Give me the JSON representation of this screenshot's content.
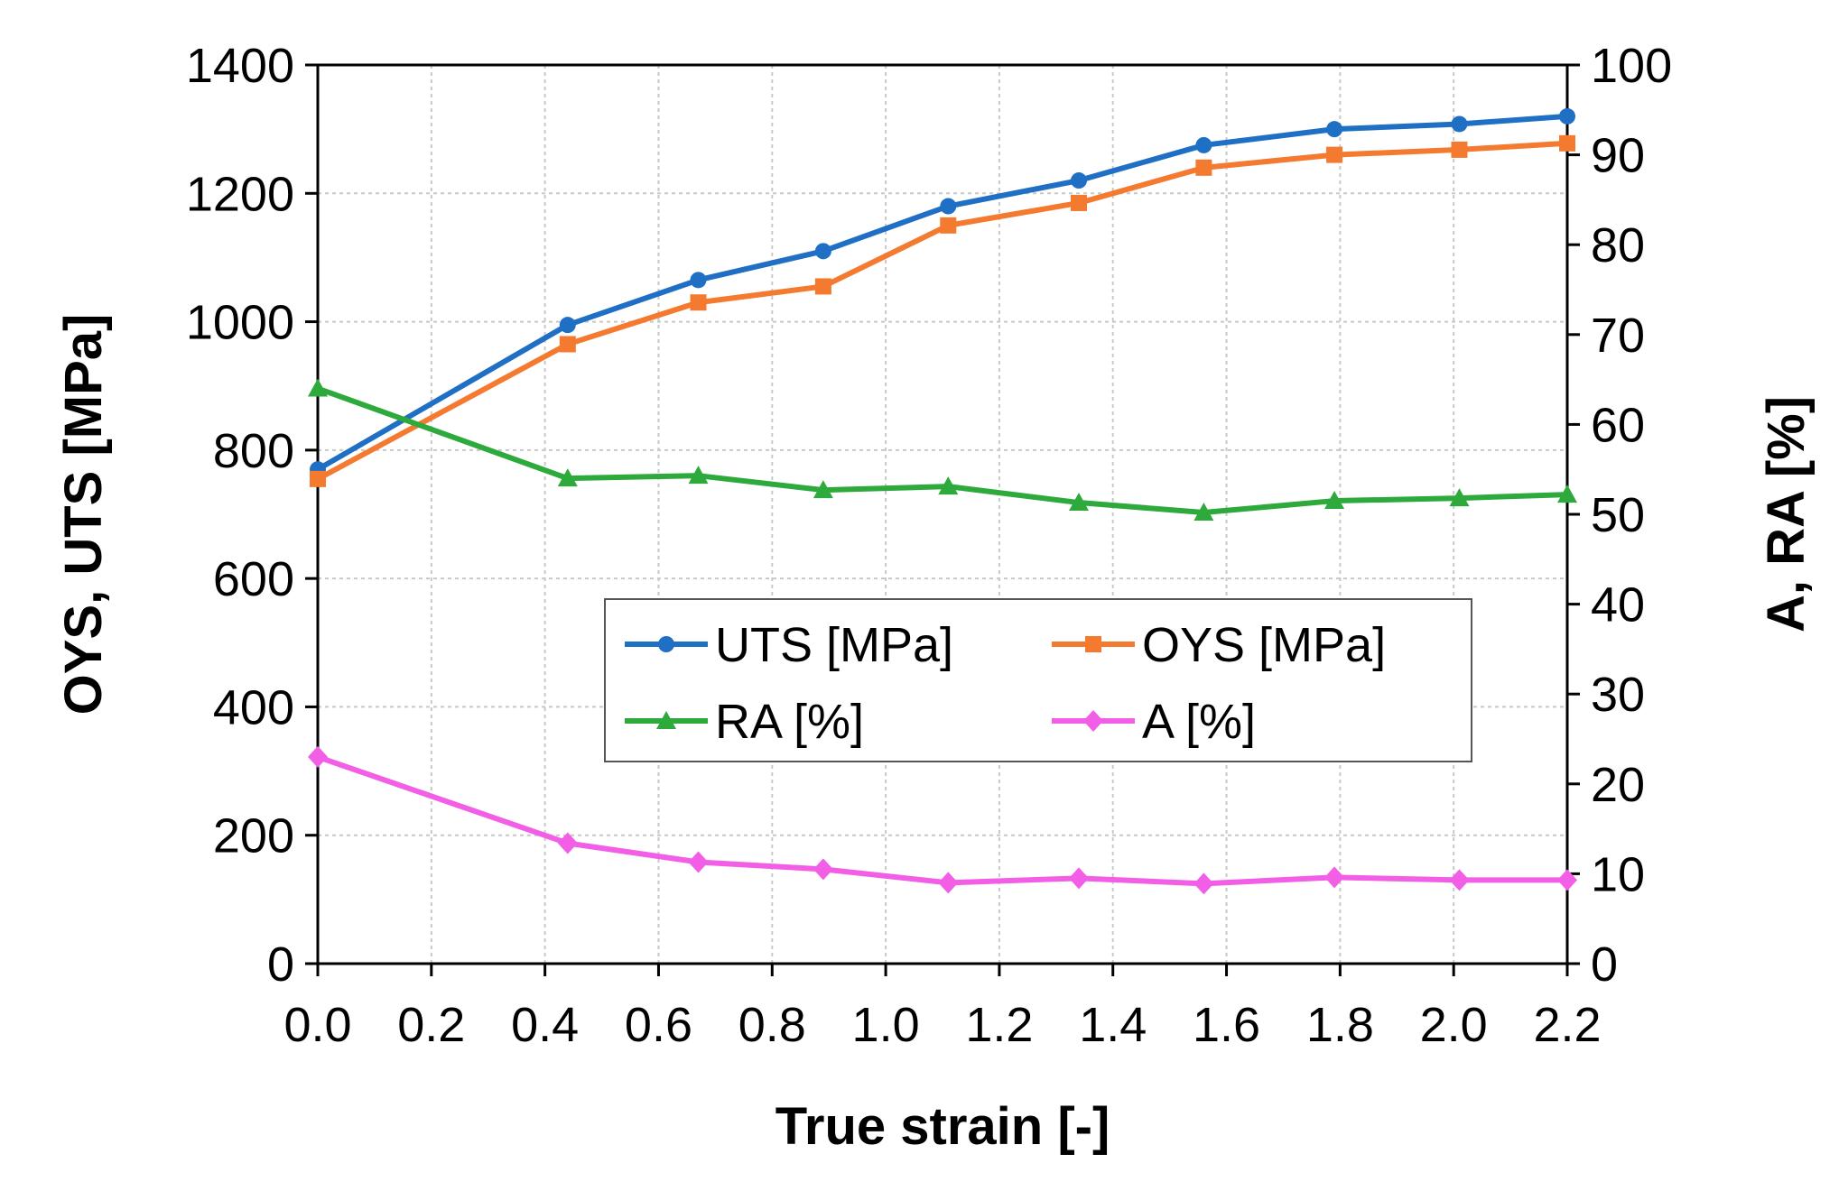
{
  "chart_data": {
    "type": "line",
    "title": "",
    "xlabel": "True strain [-]",
    "ylabel_left": "OYS, UTS [MPa]",
    "ylabel_right": "A, RA [%]",
    "xlim": [
      0.0,
      2.2
    ],
    "ylim_left": [
      0,
      1400
    ],
    "ylim_right": [
      0,
      100
    ],
    "x_ticks": [
      "0.0",
      "0.2",
      "0.4",
      "0.6",
      "0.8",
      "1.0",
      "1.2",
      "1.4",
      "1.6",
      "1.8",
      "2.0",
      "2.2"
    ],
    "y_left_ticks": [
      "0",
      "200",
      "400",
      "600",
      "800",
      "1000",
      "1200",
      "1400"
    ],
    "y_right_ticks": [
      "0",
      "10",
      "20",
      "30",
      "40",
      "50",
      "60",
      "70",
      "80",
      "90",
      "100"
    ],
    "grid": true,
    "legend_position": "center",
    "x": [
      0.0,
      0.44,
      0.67,
      0.89,
      1.11,
      1.34,
      1.56,
      1.79,
      2.01,
      2.2
    ],
    "series": [
      {
        "name": "UTS [MPa]",
        "axis": "left",
        "color": "#1f6fc5",
        "marker": "circle",
        "values": [
          770,
          995,
          1065,
          1110,
          1180,
          1220,
          1275,
          1300,
          1308,
          1320
        ]
      },
      {
        "name": "OYS [MPa]",
        "axis": "left",
        "color": "#f47a30",
        "marker": "square",
        "values": [
          755,
          965,
          1030,
          1055,
          1150,
          1185,
          1240,
          1260,
          1268,
          1278
        ]
      },
      {
        "name": "RA [%]",
        "axis": "right",
        "color": "#2eaa3c",
        "marker": "triangle",
        "values": [
          64,
          54,
          54.3,
          52.7,
          53.1,
          51.3,
          50.2,
          51.5,
          51.8,
          52.2
        ]
      },
      {
        "name": "A [%]",
        "axis": "right",
        "color": "#f25ee6",
        "marker": "diamond",
        "values": [
          23,
          13.4,
          11.3,
          10.5,
          9,
          9.5,
          8.9,
          9.6,
          9.3,
          9.3
        ]
      }
    ]
  }
}
